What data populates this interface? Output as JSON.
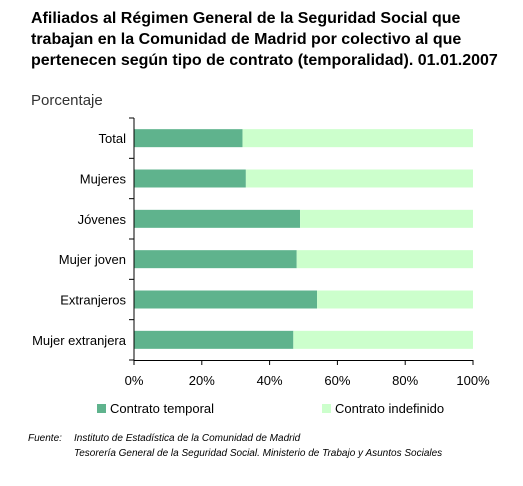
{
  "title": "Afiliados al Régimen General de la Seguridad Social que trabajan en la Comunidad de Madrid por colectivo al que pertenecen según tipo de contrato (temporalidad). 01.01.2007",
  "subtitle": "Porcentaje",
  "source": {
    "prefix": "Fuente:",
    "line1": "Instituto de Estadística de la Comunidad de Madrid",
    "line2": "Tesorería General de la Seguridad Social. Ministerio de Trabajo y Asuntos Sociales"
  },
  "chart_data": {
    "type": "bar",
    "orientation": "horizontal",
    "stacked": true,
    "categories": [
      "Total",
      "Mujeres",
      "Jóvenes",
      "Mujer joven",
      "Extranjeros",
      "Mujer extranjera"
    ],
    "series": [
      {
        "name": "Contrato temporal",
        "values": [
          32,
          33,
          49,
          48,
          54,
          47
        ],
        "color": "#5fb38d"
      },
      {
        "name": "Contrato indefinido",
        "values": [
          68,
          67,
          51,
          52,
          46,
          53
        ],
        "color": "#ccffcc"
      }
    ],
    "xlim": [
      0,
      100
    ],
    "xticks": [
      "0%",
      "20%",
      "40%",
      "60%",
      "80%",
      "100%"
    ],
    "grid": false,
    "legend": "bottom"
  }
}
